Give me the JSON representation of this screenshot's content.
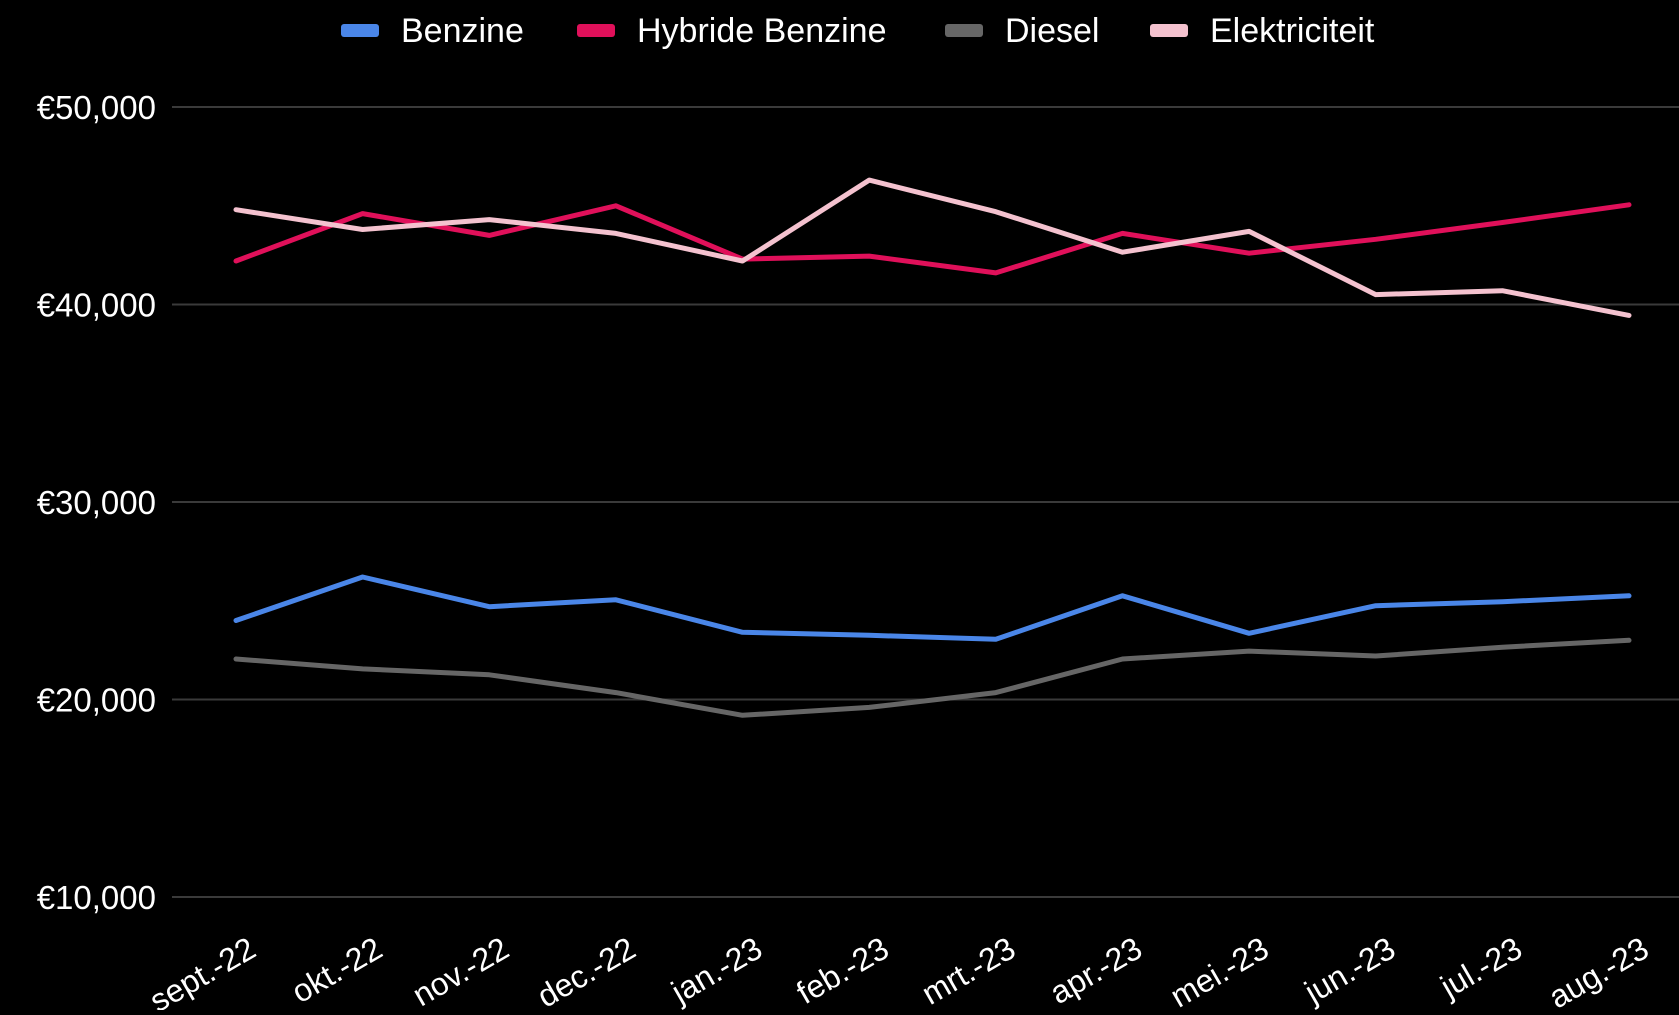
{
  "chart_data": {
    "type": "line",
    "title": "",
    "xlabel": "",
    "ylabel": "",
    "categories": [
      "sept.-22",
      "okt.-22",
      "nov.-22",
      "dec.-22",
      "jan.-23",
      "feb.-23",
      "mrt.-23",
      "apr.-23",
      "mei.-23",
      "jun.-23",
      "jul.-23",
      "aug.-23"
    ],
    "ylim": [
      10000,
      50000
    ],
    "yticks": [
      10000,
      20000,
      30000,
      40000,
      50000
    ],
    "ytick_labels": [
      "€10,000",
      "€20,000",
      "€30,000",
      "€40,000",
      "€50,000"
    ],
    "grid": true,
    "legend_position": "top",
    "series": [
      {
        "name": "Benzine",
        "color": "#4a86e8",
        "values": [
          24000,
          26200,
          24700,
          25050,
          23400,
          23250,
          23050,
          25250,
          23350,
          24750,
          24950,
          25250
        ]
      },
      {
        "name": "Hybride Benzine",
        "color": "#e0105a",
        "values": [
          42200,
          44600,
          43500,
          45000,
          42300,
          42450,
          41600,
          43600,
          42600,
          43300,
          44150,
          45050
        ]
      },
      {
        "name": "Diesel",
        "color": "#666666",
        "values": [
          22050,
          21550,
          21250,
          20350,
          19200,
          19600,
          20350,
          22050,
          22450,
          22200,
          22650,
          23000
        ]
      },
      {
        "name": "Elektriciteit",
        "color": "#f4c2cf",
        "values": [
          44800,
          43800,
          44300,
          43600,
          42200,
          46300,
          44700,
          42650,
          43700,
          40500,
          40700,
          39450
        ]
      }
    ]
  }
}
